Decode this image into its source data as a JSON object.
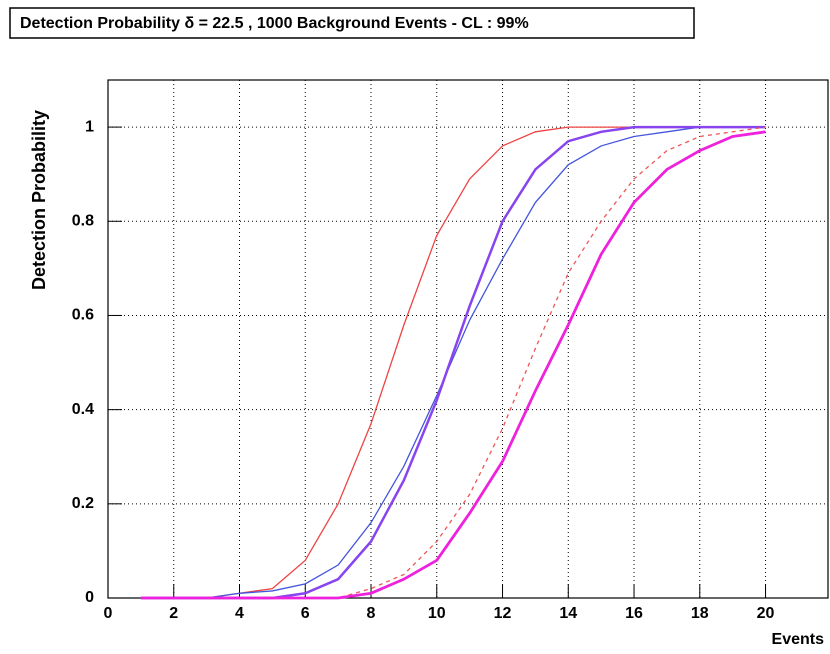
{
  "chart_data": {
    "type": "line",
    "title": "Detection Probability δ = 22.5 , 1000 Background Events - CL : 99%",
    "x_label": "Events",
    "y_label": "Detection Probability",
    "x": [
      1,
      2,
      3,
      4,
      5,
      6,
      7,
      8,
      9,
      10,
      11,
      12,
      13,
      14,
      15,
      16,
      17,
      18,
      19,
      20
    ],
    "series": [
      {
        "color": "#ee4444",
        "dash": false,
        "width": 1.3,
        "values": [
          0,
          0,
          0,
          0.01,
          0.02,
          0.08,
          0.2,
          0.37,
          0.58,
          0.77,
          0.89,
          0.96,
          0.99,
          1,
          1,
          1,
          1,
          1,
          1,
          1
        ]
      },
      {
        "color": "#4455dd",
        "dash": false,
        "width": 1.3,
        "values": [
          0,
          0,
          0,
          0.01,
          0.015,
          0.03,
          0.07,
          0.16,
          0.28,
          0.43,
          0.59,
          0.72,
          0.84,
          0.92,
          0.96,
          0.98,
          0.99,
          1,
          1,
          1
        ]
      },
      {
        "color": "#8844ee",
        "dash": false,
        "width": 2.5,
        "values": [
          0,
          0,
          0,
          0,
          0,
          0.01,
          0.04,
          0.12,
          0.25,
          0.42,
          0.62,
          0.8,
          0.91,
          0.97,
          0.99,
          1,
          1,
          1,
          1,
          1
        ]
      },
      {
        "color": "#ee5555",
        "dash": true,
        "width": 1.3,
        "values": [
          0,
          0,
          0,
          0,
          0,
          0,
          0,
          0.02,
          0.05,
          0.12,
          0.22,
          0.36,
          0.53,
          0.69,
          0.8,
          0.89,
          0.95,
          0.98,
          0.99,
          1
        ]
      },
      {
        "color": "#ee22dd",
        "dash": false,
        "width": 2.8,
        "values": [
          0,
          0,
          0,
          0,
          0,
          0,
          0,
          0.01,
          0.04,
          0.08,
          0.18,
          0.29,
          0.44,
          0.58,
          0.73,
          0.84,
          0.91,
          0.95,
          0.98,
          0.99
        ]
      }
    ],
    "xlim": [
      0,
      21.9
    ],
    "ylim": [
      0,
      1.1
    ],
    "xticks": [
      0,
      2,
      4,
      6,
      8,
      10,
      12,
      14,
      16,
      18,
      20
    ],
    "yticks": [
      0,
      0.2,
      0.4,
      0.6,
      0.8,
      1
    ],
    "grid": true
  }
}
